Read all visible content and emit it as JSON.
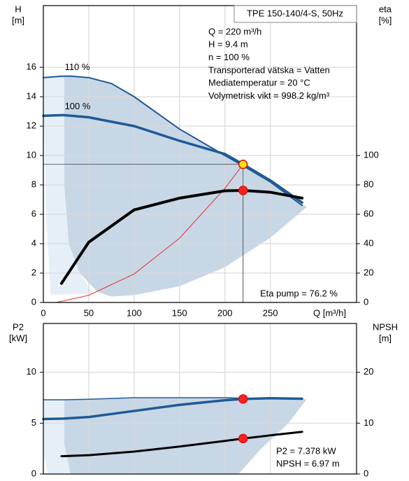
{
  "chart_data": [
    {
      "type": "line",
      "title": "TPE 150-140/4-S, 50Hz",
      "info": [
        "Q = 220 m³/h",
        "H = 9.4 m",
        "n = 100 %",
        "Transporterad vätska = Vatten",
        "Mediatemperatur = 20 °C",
        "Volymetrisk vikt = 998.2 kg/m³"
      ],
      "annotation": "Eta pump = 76.2 %",
      "y_label": [
        "H",
        "[m]"
      ],
      "y2_label": [
        "eta",
        "[%]"
      ],
      "x_label": "Q [m³/h]",
      "xlim": [
        0,
        345
      ],
      "xticks": [
        0,
        50,
        100,
        150,
        200,
        250
      ],
      "show_xtick_labels": true,
      "ylim": [
        0,
        20.2
      ],
      "yticks": [
        0,
        2,
        4,
        6,
        8,
        10,
        12,
        14,
        16
      ],
      "y2lim": [
        0,
        202
      ],
      "y2ticks": [
        0,
        20,
        40,
        60,
        80,
        100
      ],
      "grid": true,
      "regions": [
        {
          "color": "#e6eff7",
          "x": [
            0,
            23,
            23,
            28,
            40,
            55,
            8,
            3
          ],
          "y": [
            15.3,
            15.4,
            8,
            4,
            2,
            0.6,
            0.5,
            6
          ]
        },
        {
          "color": "#c8d7e6",
          "x": [
            23,
            40,
            75,
            100,
            150,
            200,
            250,
            290,
            290,
            250,
            200,
            150,
            100,
            75,
            60,
            40,
            28,
            23
          ],
          "y": [
            15.4,
            15.4,
            14.9,
            14.0,
            11.8,
            10.0,
            8.2,
            6.5,
            6.5,
            4.4,
            2.4,
            1.1,
            0.5,
            0.4,
            0.7,
            2,
            4,
            8
          ]
        }
      ],
      "series": [
        {
          "name": "110 %",
          "color": "#1f5a96",
          "width": 2,
          "x": [
            0,
            22,
            30,
            50,
            75,
            100,
            150,
            200,
            220,
            250,
            285
          ],
          "values": [
            15.3,
            15.4,
            15.4,
            15.3,
            14.9,
            14.0,
            11.8,
            10.0,
            9.3,
            8.2,
            6.6
          ]
        },
        {
          "name": "100 %",
          "color": "#1f5a96",
          "width": 3.5,
          "x": [
            0,
            22,
            50,
            100,
            150,
            200,
            220,
            250,
            285
          ],
          "values": [
            12.7,
            12.75,
            12.6,
            12.0,
            11.0,
            10.1,
            9.4,
            8.3,
            6.8
          ]
        },
        {
          "color": "#e03030",
          "width": 1,
          "x": [
            14,
            50,
            100,
            150,
            200,
            220
          ],
          "values": [
            0,
            0.49,
            1.94,
            4.37,
            7.77,
            9.4
          ]
        },
        {
          "color": "#000000",
          "width": 4,
          "axis": "y2",
          "x": [
            20,
            50,
            100,
            150,
            200,
            220,
            250,
            285
          ],
          "values": [
            13,
            41,
            63,
            71,
            76,
            76.2,
            75,
            71
          ]
        }
      ],
      "points": [
        {
          "x": 220,
          "y": 9.4,
          "color": "#ffe000",
          "guides": true
        },
        {
          "x": 220,
          "y": 76.2,
          "axis": "y2",
          "color": "#ff2020",
          "guides": true
        }
      ]
    },
    {
      "type": "line",
      "annotation": [
        "P2 = 7.378 kW",
        "NPSH = 6.97 m"
      ],
      "y_label": [
        "P2",
        "[kW]"
      ],
      "y2_label": [
        "NPSH",
        "[m]"
      ],
      "xlim": [
        0,
        345
      ],
      "xticks": [
        0,
        50,
        100,
        150,
        200,
        250
      ],
      "show_xtick_labels": false,
      "ylim": [
        0,
        14.8
      ],
      "yticks": [
        0,
        5,
        10
      ],
      "y2lim": [
        0,
        29.6
      ],
      "y2ticks": [
        0,
        10,
        20
      ],
      "grid": true,
      "regions": [
        {
          "color": "#e6eff7",
          "x": [
            0,
            23,
            23,
            30,
            5,
            0
          ],
          "y": [
            7.3,
            7.3,
            3,
            0,
            0,
            2
          ]
        },
        {
          "color": "#c8d7e6",
          "x": [
            23,
            100,
            200,
            290,
            270,
            240,
            215,
            30,
            23
          ],
          "y": [
            7.3,
            7.5,
            7.5,
            7.35,
            5,
            2.5,
            0,
            0,
            3
          ]
        }
      ],
      "series": [
        {
          "color": "#1f5a96",
          "width": 1.5,
          "x": [
            0,
            22,
            50,
            100,
            150,
            200,
            220,
            250,
            285
          ],
          "values": [
            7.3,
            7.3,
            7.35,
            7.5,
            7.5,
            7.5,
            7.45,
            7.45,
            7.35
          ]
        },
        {
          "color": "#1f5a96",
          "width": 3.5,
          "x": [
            0,
            22,
            50,
            100,
            150,
            200,
            220,
            250,
            285
          ],
          "values": [
            5.4,
            5.45,
            5.6,
            6.2,
            6.8,
            7.25,
            7.378,
            7.45,
            7.4
          ]
        },
        {
          "color": "#000000",
          "width": 3,
          "axis": "y2",
          "x": [
            20,
            50,
            100,
            150,
            200,
            220,
            250,
            285
          ],
          "values": [
            3.5,
            3.7,
            4.4,
            5.4,
            6.5,
            6.97,
            7.6,
            8.3
          ]
        }
      ],
      "points": [
        {
          "x": 220,
          "y": 7.378,
          "color": "#ff2020",
          "guides": false
        },
        {
          "x": 220,
          "y": 6.97,
          "axis": "y2",
          "color": "#ff2020",
          "guides": false
        }
      ]
    }
  ]
}
